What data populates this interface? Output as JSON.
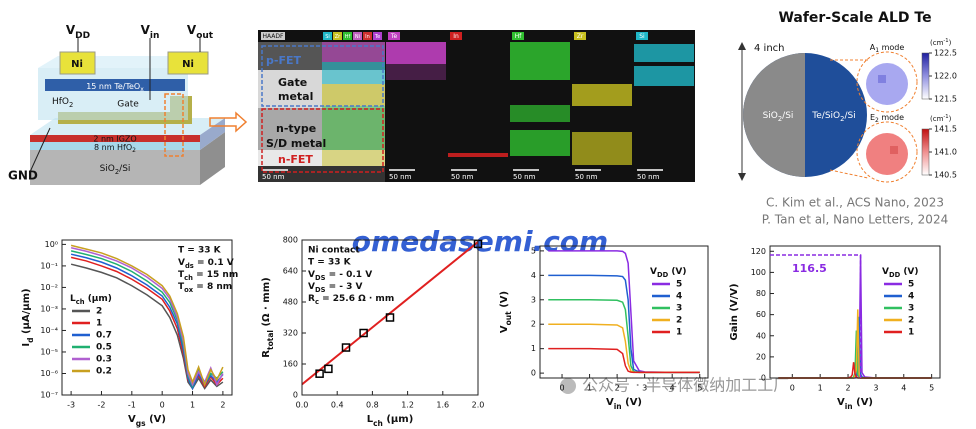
{
  "device": {
    "vdd": [
      "V",
      {
        "sub": "DD"
      }
    ],
    "vin": [
      "V",
      {
        "sub": "in"
      }
    ],
    "vout": [
      "V",
      {
        "sub": "out"
      }
    ],
    "ni": "Ni",
    "te_layer": [
      "15 nm Te/TeO",
      {
        "sub": "x"
      }
    ],
    "hfo2": [
      "HfO",
      {
        "sub": "2"
      }
    ],
    "gate": "Gate",
    "igzo": "2 nm IGZO",
    "hfo2_thin": [
      "8 nm HfO",
      {
        "sub": "2"
      }
    ],
    "substrate": [
      "SiO",
      {
        "sub": "2"
      },
      "/Si"
    ],
    "gnd": "GND"
  },
  "eds": {
    "haadf": "HAADF",
    "legend": [
      {
        "name": "Si",
        "color": "#20b8c8"
      },
      {
        "name": "Zr",
        "color": "#c8c020"
      },
      {
        "name": "Hf",
        "color": "#30c030"
      },
      {
        "name": "Ni",
        "color": "#c060c0"
      },
      {
        "name": "In",
        "color": "#d03030"
      },
      {
        "name": "Te",
        "color": "#b040d0"
      }
    ],
    "panels": [
      {
        "name": "Te",
        "color": "#c040c0"
      },
      {
        "name": "In",
        "color": "#d02020"
      },
      {
        "name": "Hf",
        "color": "#30c030"
      },
      {
        "name": "Zr",
        "color": "#c8c020"
      },
      {
        "name": "Si",
        "color": "#20b8c8"
      }
    ],
    "pfet": "p-FET",
    "gate_metal": [
      "Gate",
      "metal"
    ],
    "sd_metal": [
      "n-type",
      "S/D metal"
    ],
    "nfet": "n-FET",
    "scale_bar": "50 nm"
  },
  "wafer": {
    "title": "Wafer-Scale ALD Te",
    "size": "4 inch",
    "left": [
      "SiO",
      {
        "sub": "2"
      },
      "/Si"
    ],
    "right": [
      "Te/SiO",
      {
        "sub": "2"
      },
      "/Si"
    ],
    "a1": [
      "A",
      {
        "sub": "1"
      },
      " mode"
    ],
    "e2": [
      "E",
      {
        "sub": "2"
      },
      " mode"
    ],
    "unit": [
      "(cm",
      {
        "sup": "-1"
      },
      ")"
    ],
    "a1_ticks": [
      122.5,
      {
        "value": 122,
        "label": "122.0"
      },
      121.5
    ],
    "e2_ticks": [
      141.5,
      {
        "value": 141,
        "label": "141.0"
      },
      140.5
    ]
  },
  "references": [
    "C. Kim et al., ACS Nano, 2023",
    "P. Tan et al, Nano Letters, 2024"
  ],
  "watermark": {
    "site": "omedasemi.com",
    "wechat": "公众号 · 半导体微纳加工工厂"
  },
  "chart_data": [
    {
      "type": "line",
      "log_y": true,
      "xlim": [
        -3.3,
        2.3
      ],
      "ylim": [
        1e-07,
        1.6
      ],
      "xticks": [
        -3,
        -2,
        -1,
        0,
        1,
        2
      ],
      "yticks": [
        {
          "value": 1,
          "label": "10⁰"
        },
        {
          "value": 0.1,
          "label": "10⁻¹"
        },
        {
          "value": 0.01,
          "label": "10⁻²"
        },
        {
          "value": 0.001,
          "label": "10⁻³"
        },
        {
          "value": 0.0001,
          "label": "10⁻⁴"
        },
        {
          "value": 1e-05,
          "label": "10⁻⁵"
        },
        {
          "value": 1e-06,
          "label": "10⁻⁶"
        },
        {
          "value": 1e-07,
          "label": "10⁻⁷"
        }
      ],
      "x_label": [
        "V",
        {
          "sub": "gs"
        },
        " (V)"
      ],
      "y_label": [
        "I",
        {
          "sub": "d"
        },
        " (μA/μm)"
      ],
      "annotations": [
        "T = 33 K",
        [
          "V",
          {
            "sub": "ds"
          },
          " = 0.1 V"
        ],
        [
          "T",
          {
            "sub": "ch"
          },
          " = 15 nm"
        ],
        [
          "T",
          {
            "sub": "ox"
          },
          " = 8 nm"
        ]
      ],
      "annotation_pos": "upper right",
      "legend_title": [
        "L",
        {
          "sub": "ch"
        },
        " (μm)"
      ],
      "legend": "center left",
      "x": [
        -3,
        -2.5,
        -2,
        -1.5,
        -1,
        -0.5,
        0,
        0.25,
        0.5,
        0.7,
        0.85,
        1.0,
        1.2,
        1.4,
        1.6,
        1.8,
        2.0
      ],
      "series": [
        {
          "name": "2",
          "color": "#555555",
          "values": [
            0.12,
            0.08,
            0.05,
            0.028,
            0.012,
            0.0045,
            0.0014,
            0.0004,
            6e-05,
            5e-06,
            4e-07,
            2e-07,
            6e-07,
            2e-07,
            5e-07,
            2.5e-07,
            4e-07
          ]
        },
        {
          "name": "1",
          "color": "#e02020",
          "values": [
            0.25,
            0.17,
            0.1,
            0.055,
            0.024,
            0.009,
            0.0028,
            0.0008,
            0.00012,
            8e-06,
            5e-07,
            3e-07,
            8e-07,
            2.5e-07,
            7e-07,
            3e-07,
            6e-07
          ]
        },
        {
          "name": "0.7",
          "color": "#1f5fd0",
          "values": [
            0.35,
            0.24,
            0.15,
            0.08,
            0.035,
            0.013,
            0.004,
            0.0012,
            0.0002,
            1.2e-05,
            6e-07,
            2e-07,
            1e-06,
            3e-07,
            8e-07,
            4e-07,
            9e-07
          ]
        },
        {
          "name": "0.5",
          "color": "#20b070",
          "values": [
            0.5,
            0.34,
            0.22,
            0.12,
            0.055,
            0.02,
            0.006,
            0.002,
            0.0003,
            2e-05,
            8e-07,
            2.5e-07,
            1.5e-06,
            3.5e-07,
            1e-06,
            6e-07,
            1.2e-06
          ]
        },
        {
          "name": "0.3",
          "color": "#b060d0",
          "values": [
            0.7,
            0.48,
            0.3,
            0.17,
            0.08,
            0.03,
            0.009,
            0.003,
            0.0004,
            3e-05,
            1e-06,
            3e-07,
            1.2e-06,
            4e-07,
            1.8e-06,
            3e-07,
            1e-06
          ]
        },
        {
          "name": "0.2",
          "color": "#c8a020",
          "values": [
            0.9,
            0.6,
            0.4,
            0.22,
            0.1,
            0.04,
            0.012,
            0.004,
            0.0006,
            5e-05,
            1.5e-06,
            4e-07,
            2e-06,
            3e-07,
            1.5e-06,
            5e-07,
            2e-06
          ]
        }
      ]
    },
    {
      "type": "scatter",
      "xlim": [
        0,
        2
      ],
      "ylim": [
        0,
        800
      ],
      "xticks": [
        {
          "value": 0,
          "label": "0.0"
        },
        0.4,
        0.8,
        1.2,
        1.6,
        {
          "value": 2,
          "label": "2.0"
        }
      ],
      "yticks": [
        0,
        160,
        320,
        480,
        640,
        800
      ],
      "x_label": [
        "L",
        {
          "sub": "ch"
        },
        " (μm)"
      ],
      "y_label": [
        "R",
        {
          "sub": "total"
        },
        " (Ω · mm)"
      ],
      "annotations": [
        "Ni contact",
        "T = 33 K",
        [
          "V",
          {
            "sub": "DS"
          },
          " = - 0.1 V"
        ],
        [
          "V",
          {
            "sub": "DS"
          },
          " = - 3 V"
        ],
        [
          "R",
          {
            "sub": "c"
          },
          " = 25.6 Ω · mm"
        ]
      ],
      "annotation_pos": "upper left",
      "series": [
        {
          "color": "#000000",
          "x": [
            0.2,
            0.3,
            0.5,
            0.7,
            1.0,
            2.0
          ],
          "values": [
            110,
            135,
            245,
            320,
            400,
            780
          ]
        }
      ],
      "fit": {
        "color": "#e02020",
        "x": [
          0,
          2
        ],
        "values": [
          55,
          790
        ]
      }
    },
    {
      "type": "line",
      "xlim": [
        -0.8,
        5.3
      ],
      "ylim": [
        -0.2,
        5.2
      ],
      "xticks": [
        0,
        1,
        2,
        3,
        4,
        5
      ],
      "yticks": [
        0,
        1,
        2,
        3,
        4,
        5
      ],
      "x_label": [
        "V",
        {
          "sub": "in"
        },
        " (V)"
      ],
      "y_label": [
        "V",
        {
          "sub": "out"
        },
        " (V)"
      ],
      "legend_title": [
        "V",
        {
          "sub": "DD"
        },
        " (V)"
      ],
      "legend": "center right",
      "x": [
        -0.5,
        0,
        1,
        2,
        2.2,
        2.3,
        2.4,
        2.5,
        2.6,
        2.8,
        3,
        4,
        5
      ],
      "series": [
        {
          "name": "5",
          "color": "#8a2be2",
          "values": [
            5,
            5,
            5,
            5,
            4.98,
            4.9,
            4.5,
            2.5,
            0.5,
            0.1,
            0.05,
            0.03,
            0.03
          ]
        },
        {
          "name": "4",
          "color": "#1f5fd0",
          "values": [
            4,
            4,
            4,
            3.98,
            3.95,
            3.8,
            3.0,
            1.0,
            0.15,
            0.05,
            0.03,
            0.03,
            0.03
          ]
        },
        {
          "name": "3",
          "color": "#30c060",
          "values": [
            3,
            3,
            3,
            2.98,
            2.9,
            2.6,
            1.5,
            0.3,
            0.06,
            0.03,
            0.03,
            0.03,
            0.03
          ]
        },
        {
          "name": "2",
          "color": "#f0b020",
          "values": [
            2,
            2,
            2,
            1.97,
            1.85,
            1.3,
            0.4,
            0.08,
            0.04,
            0.03,
            0.03,
            0.03,
            0.03
          ]
        },
        {
          "name": "1",
          "color": "#e02020",
          "values": [
            1,
            1,
            1,
            0.97,
            0.8,
            0.3,
            0.08,
            0.04,
            0.03,
            0.03,
            0.03,
            0.03,
            0.03
          ]
        }
      ]
    },
    {
      "type": "line",
      "annotate_max": true,
      "xlim": [
        -0.8,
        5.3
      ],
      "ylim": [
        0,
        125
      ],
      "xticks": [
        0,
        1,
        2,
        3,
        4,
        5
      ],
      "yticks": [
        0,
        20,
        40,
        60,
        80,
        100,
        120
      ],
      "x_label": [
        "V",
        {
          "sub": "in"
        },
        " (V)"
      ],
      "y_label": "Gain (V/V)",
      "legend_title": [
        "V",
        {
          "sub": "DD"
        },
        " (V)"
      ],
      "legend": "center right",
      "x": [
        -0.5,
        1.9,
        2.0,
        2.1,
        2.15,
        2.2,
        2.25,
        2.3,
        2.35,
        2.4,
        2.45,
        2.5,
        2.6,
        3,
        5
      ],
      "series": [
        {
          "name": "5",
          "color": "#8a2be2",
          "values": [
            0,
            0,
            0,
            0,
            0,
            0,
            0,
            1,
            3,
            10,
            116.5,
            5,
            1,
            0,
            0
          ]
        },
        {
          "name": "4",
          "color": "#1f5fd0",
          "values": [
            0,
            0,
            0,
            0,
            0,
            0,
            1,
            3,
            10,
            58,
            4,
            1,
            0,
            0,
            0
          ]
        },
        {
          "name": "3",
          "color": "#30c060",
          "values": [
            0,
            0,
            0,
            0,
            0,
            1,
            5,
            45,
            3,
            1,
            0,
            0,
            0,
            0,
            0
          ]
        },
        {
          "name": "2",
          "color": "#f0b020",
          "values": [
            0,
            0,
            0,
            0,
            0,
            0,
            2,
            8,
            65,
            3,
            0,
            0,
            0,
            0,
            0
          ]
        },
        {
          "name": "1",
          "color": "#e02020",
          "values": [
            0,
            0,
            0,
            1,
            3,
            15,
            4,
            1,
            0,
            0,
            0,
            0,
            0,
            0,
            0
          ]
        }
      ]
    }
  ]
}
